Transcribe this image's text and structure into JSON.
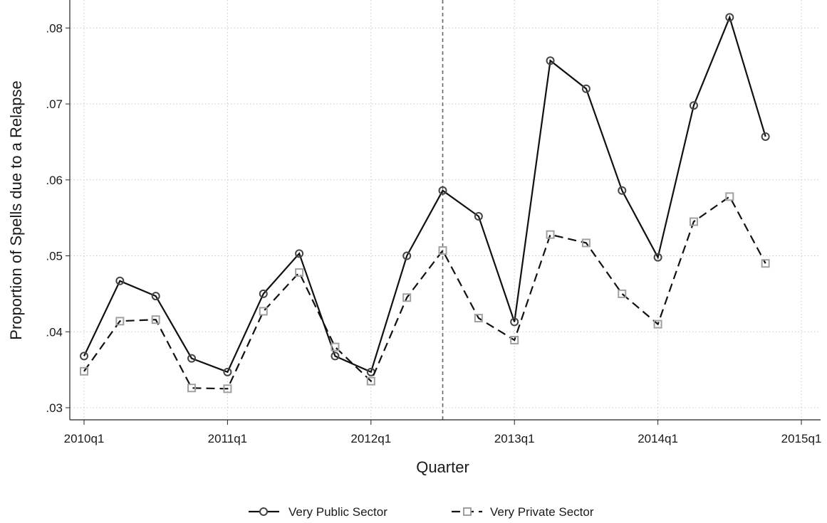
{
  "chart_data": {
    "type": "line",
    "title": "",
    "xlabel": "Quarter",
    "ylabel": "Proportion of Spells due to a Relapse",
    "x": [
      "2010q1",
      "2010q2",
      "2010q3",
      "2010q4",
      "2011q1",
      "2011q2",
      "2011q3",
      "2011q4",
      "2012q1",
      "2012q2",
      "2012q3",
      "2012q4",
      "2013q1",
      "2013q2",
      "2013q3",
      "2013q4",
      "2014q1",
      "2014q2",
      "2014q3",
      "2014q4"
    ],
    "x_tick_labels": [
      "2010q1",
      "2011q1",
      "2012q1",
      "2013q1",
      "2014q1",
      "2015q1"
    ],
    "y_tick_labels": [
      ".03",
      ".04",
      ".05",
      ".06",
      ".07",
      ".08"
    ],
    "y_ticks": [
      0.03,
      0.04,
      0.05,
      0.06,
      0.07,
      0.08
    ],
    "ylim": [
      0.03,
      0.082
    ],
    "xlim": [
      "2010q1",
      "2015q1"
    ],
    "grid": true,
    "reference_line": {
      "x": "2012q3",
      "style": "dashed"
    },
    "legend_position": "bottom",
    "series": [
      {
        "name": "Very Public Sector",
        "marker": "circle",
        "line_style": "solid",
        "color": "#222222",
        "values": [
          0.0368,
          0.0467,
          0.0447,
          0.0365,
          0.0347,
          0.045,
          0.0503,
          0.0368,
          0.0347,
          0.05,
          0.0586,
          0.0552,
          0.0413,
          0.0757,
          0.072,
          0.0586,
          0.0498,
          0.0698,
          0.0814,
          0.0657
        ]
      },
      {
        "name": "Very Private Sector",
        "marker": "square",
        "line_style": "dashed",
        "color": "#aaaaaa",
        "values": [
          0.0348,
          0.0414,
          0.0416,
          0.0326,
          0.0325,
          0.0427,
          0.0478,
          0.038,
          0.0335,
          0.0445,
          0.0507,
          0.0418,
          0.0389,
          0.0528,
          0.0517,
          0.045,
          0.041,
          0.0545,
          0.0578,
          0.049
        ]
      }
    ]
  }
}
